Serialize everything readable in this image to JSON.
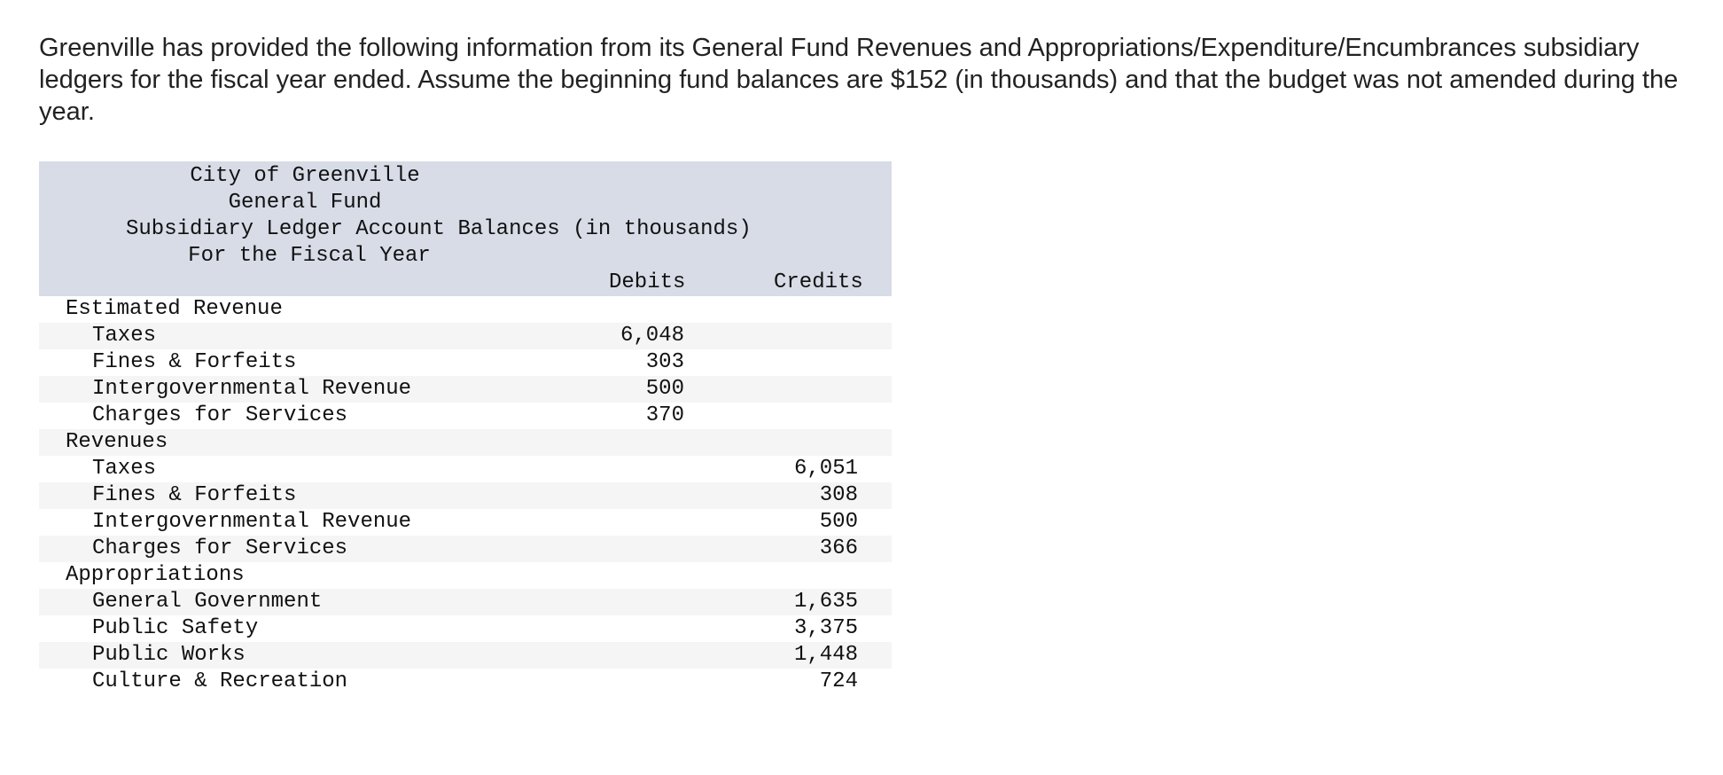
{
  "intro": {
    "text": "Greenville has provided the following information from its General Fund Revenues and Appropriations/Expenditure/Encumbrances subsidiary ledgers for the fiscal year ended. Assume the beginning fund balances are $152 (in thousands) and that the budget was not amended during the year."
  },
  "ledger": {
    "title_1": "City of Greenville",
    "title_2": "General Fund",
    "title_3": "Subsidiary Ledger Account Balances (in thousands)",
    "title_4": "For the Fiscal Year",
    "col_debits": "Debits",
    "col_credits": "Credits",
    "rows": [
      {
        "label": "Estimated Revenue",
        "debit": "",
        "credit": ""
      },
      {
        "label": "Taxes",
        "debit": "6,048",
        "credit": ""
      },
      {
        "label": "Fines & Forfeits",
        "debit": "303",
        "credit": ""
      },
      {
        "label": "Intergovernmental Revenue",
        "debit": "500",
        "credit": ""
      },
      {
        "label": "Charges for Services",
        "debit": "370",
        "credit": ""
      },
      {
        "label": "Revenues",
        "debit": "",
        "credit": ""
      },
      {
        "label": "Taxes",
        "debit": "",
        "credit": "6,051"
      },
      {
        "label": "Fines & Forfeits",
        "debit": "",
        "credit": "308"
      },
      {
        "label": "Intergovernmental Revenue",
        "debit": "",
        "credit": "500"
      },
      {
        "label": "Charges for Services",
        "debit": "",
        "credit": "366"
      },
      {
        "label": "Appropriations",
        "debit": "",
        "credit": ""
      },
      {
        "label": "General Government",
        "debit": "",
        "credit": "1,635"
      },
      {
        "label": "Public Safety",
        "debit": "",
        "credit": "3,375"
      },
      {
        "label": "Public Works",
        "debit": "",
        "credit": "1,448"
      },
      {
        "label": "Culture & Recreation",
        "debit": "",
        "credit": "724"
      }
    ]
  }
}
